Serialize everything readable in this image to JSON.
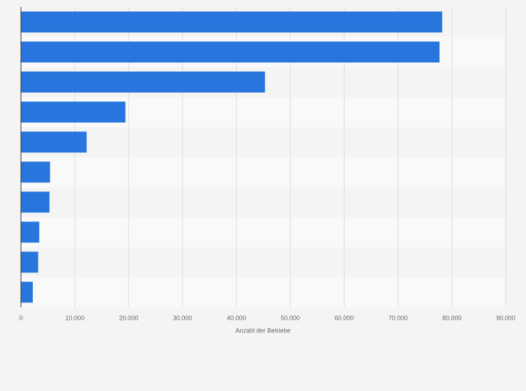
{
  "chart_data": {
    "type": "bar",
    "orientation": "horizontal",
    "x_label": "Anzahl der Betriebe",
    "values": [
      78200,
      77700,
      45300,
      19400,
      12200,
      5400,
      5300,
      3400,
      3200,
      2200
    ],
    "color": "#2876dd",
    "xlim": [
      0,
      90000
    ],
    "xticks": [
      0,
      {
        "value": 10000,
        "label": "10.000"
      },
      {
        "value": 20000,
        "label": "20.000"
      },
      {
        "value": 30000,
        "label": "30.000"
      },
      {
        "value": 40000,
        "label": "40.000"
      },
      {
        "value": 50000,
        "label": "50.000"
      },
      {
        "value": 60000,
        "label": "60.000"
      },
      {
        "value": 70000,
        "label": "70.000"
      },
      {
        "value": 80000,
        "label": "80.000"
      },
      {
        "value": 90000,
        "label": "90.000"
      }
    ],
    "grid": true
  }
}
